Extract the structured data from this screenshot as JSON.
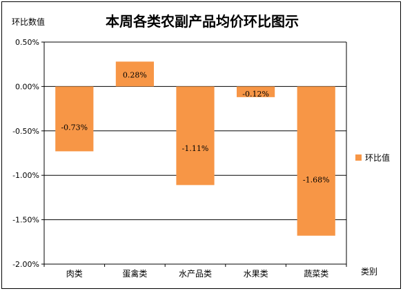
{
  "chart_data": {
    "type": "bar",
    "title": "本周各类农副产品均价环比图示",
    "ylabel": "环比数值",
    "xlabel": "类别",
    "categories": [
      "肉类",
      "蛋禽类",
      "水产品类",
      "水果类",
      "蔬菜类"
    ],
    "series": [
      {
        "name": "环比值",
        "values": [
          -0.73,
          0.28,
          -1.11,
          -0.12,
          -1.68
        ],
        "labels": [
          "-0.73%",
          "0.28%",
          "-1.11%",
          "-0.12%",
          "-1.68%"
        ]
      }
    ],
    "yticks": [
      0.5,
      0.0,
      -0.5,
      -1.0,
      -1.5,
      -2.0
    ],
    "ytick_labels": [
      "0.50%",
      "0.00%",
      "-0.50%",
      "-1.00%",
      "-1.50%",
      "-2.00%"
    ],
    "ylim": [
      -2.0,
      0.5
    ],
    "grid": true,
    "legend_position": "right",
    "bar_color": "#F79646"
  }
}
